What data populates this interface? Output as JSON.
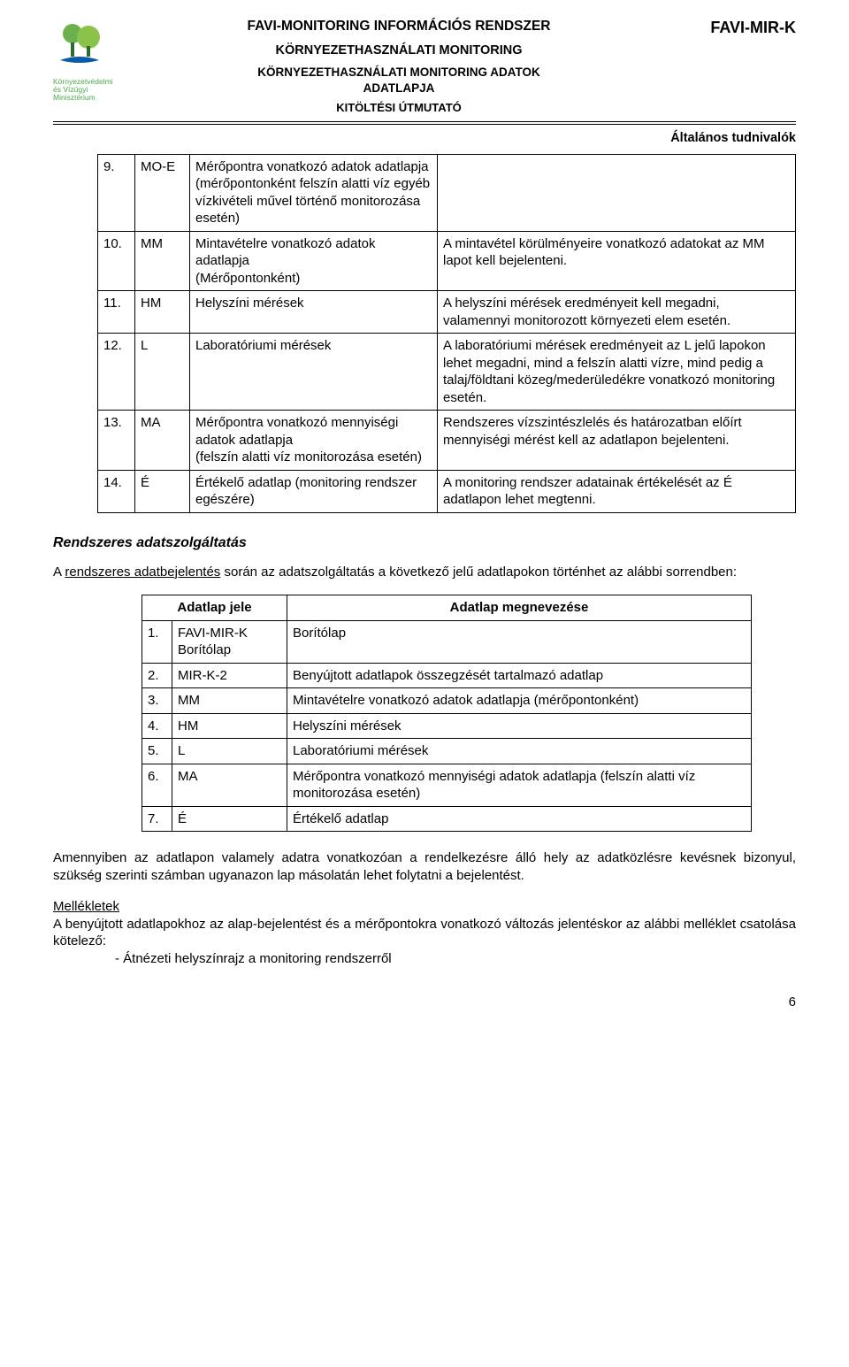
{
  "header": {
    "logo_caption_l1": "Környezetvédelmi",
    "logo_caption_l2": "és Vízügyi",
    "logo_caption_l3": "Minisztérium",
    "line1": "FAVI-MONITORING INFORMÁCIÓS RENDSZER",
    "line2": "KÖRNYEZETHASZNÁLATI MONITORING",
    "line3": "KÖRNYEZETHASZNÁLATI MONITORING ADATOK",
    "line4": "ADATLAPJA",
    "line5": "KITÖLTÉSI ÚTMUTATÓ",
    "right": "FAVI-MIR-K",
    "general": "Általános tudnivalók"
  },
  "table1": {
    "rows": [
      {
        "n": "9.",
        "code": "MO-E",
        "desc": "Mérőpontra vonatkozó adatok adatlapja\n(mérőpontonként felszín alatti víz egyéb vízkivételi művel történő monitorozása esetén)",
        "note": ""
      },
      {
        "n": "10.",
        "code": "MM",
        "desc": "Mintavételre vonatkozó adatok adatlapja\n(Mérőpontonként)",
        "note": "A mintavétel körülményeire vonatkozó adatokat az MM lapot kell bejelenteni."
      },
      {
        "n": "11.",
        "code": "HM",
        "desc": "Helyszíni mérések",
        "note": "A helyszíni mérések eredményeit kell megadni, valamennyi monitorozott környezeti elem esetén."
      },
      {
        "n": "12.",
        "code": "L",
        "desc": "Laboratóriumi mérések",
        "note": "A laboratóriumi mérések eredményeit az L jelű lapokon lehet megadni, mind a felszín alatti vízre, mind pedig a talaj/földtani közeg/mederüledékre vonatkozó monitoring esetén."
      },
      {
        "n": "13.",
        "code": "MA",
        "desc": "Mérőpontra vonatkozó mennyiségi adatok adatlapja\n(felszín alatti víz monitorozása esetén)",
        "note": "Rendszeres vízszintészlelés és határozatban előírt mennyiségi mérést kell az adatlapon bejelenteni."
      },
      {
        "n": "14.",
        "code": "É",
        "desc": "Értékelő adatlap (monitoring rendszer egészére)",
        "note": "A monitoring rendszer adatainak értékelését az É adatlapon lehet megtenni."
      }
    ]
  },
  "section": {
    "heading": "Rendszeres adatszolgáltatás",
    "intro_pre": "A ",
    "intro_ul": "rendszeres adatbejelentés",
    "intro_post": " során az adatszolgáltatás a következő jelű adatlapokon történhet az alábbi sorrendben:"
  },
  "table2": {
    "header_left": "Adatlap jele",
    "header_right": "Adatlap megnevezése",
    "rows": [
      {
        "n": "1.",
        "code": "FAVI-MIR-K Borítólap",
        "name": "Borítólap"
      },
      {
        "n": "2.",
        "code": "MIR-K-2",
        "name": "Benyújtott adatlapok összegzését tartalmazó adatlap"
      },
      {
        "n": "3.",
        "code": "MM",
        "name": "Mintavételre vonatkozó adatok adatlapja (mérőpontonként)"
      },
      {
        "n": "4.",
        "code": "HM",
        "name": "Helyszíni mérések"
      },
      {
        "n": "5.",
        "code": "L",
        "name": "Laboratóriumi mérések"
      },
      {
        "n": "6.",
        "code": "MA",
        "name": "Mérőpontra vonatkozó mennyiségi adatok adatlapja (felszín alatti víz monitorozása esetén)"
      },
      {
        "n": "7.",
        "code": "É",
        "name": "Értékelő adatlap"
      }
    ]
  },
  "closing": {
    "para1": "Amennyiben az adatlapon valamely adatra vonatkozóan a rendelkezésre álló hely az adatközlésre kevésnek bizonyul, szükség szerinti számban ugyanazon lap másolatán lehet folytatni a bejelentést.",
    "attach_head": "Mellékletek",
    "attach_body": "A benyújtott adatlapokhoz az alap-bejelentést és a mérőpontokra vonatkozó változás jelentéskor az alábbi melléklet csatolása kötelező:",
    "attach_item": "- Átnézeti helyszínrajz a monitoring rendszerről"
  },
  "pagenum": "6",
  "colors": {
    "logo_green": "#6ab04c",
    "logo_dark": "#2d6a2d",
    "logo_blue": "#0b5aa6"
  }
}
